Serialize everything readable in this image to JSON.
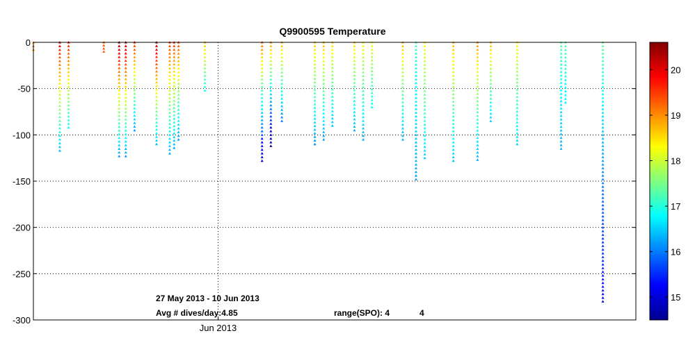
{
  "chart_data": {
    "type": "scatter",
    "title": "Q9900595 Temperature",
    "xlabel": "",
    "ylabel": "",
    "ylim": [
      -300,
      0
    ],
    "xlim_days": [
      -4.2,
      9.5
    ],
    "x_reference": "2013-06-01",
    "yticks": [
      0,
      -50,
      -100,
      -150,
      -200,
      -250,
      -300
    ],
    "xtick_label": "Jun 2013",
    "xtick_day": 0,
    "grid": true,
    "colorbar": {
      "min": 14.5,
      "max": 20.6,
      "ticks": [
        15,
        16,
        17,
        18,
        19,
        20
      ],
      "colormap": "jet"
    },
    "annotations": {
      "date_range": "27 May 2013 - 10 Jun 2013",
      "avg_dives": "Avg # dives/day:4.85",
      "range_spo": "range(SPO): 4",
      "range_spo_value": "4"
    },
    "profiles": [
      {
        "day": -4.2,
        "max_depth": -8,
        "surface_temp": 19.0,
        "temp_at_max": 19.0
      },
      {
        "day": -3.6,
        "max_depth": -117,
        "surface_temp": 20.0,
        "temp_at_max": 16.4
      },
      {
        "day": -3.4,
        "max_depth": -92,
        "surface_temp": 19.8,
        "temp_at_max": 16.8
      },
      {
        "day": -2.6,
        "max_depth": -10,
        "surface_temp": 19.3,
        "temp_at_max": 19.3
      },
      {
        "day": -2.25,
        "max_depth": -123,
        "surface_temp": 20.5,
        "temp_at_max": 16.2
      },
      {
        "day": -2.1,
        "max_depth": -123,
        "surface_temp": 20.4,
        "temp_at_max": 16.2
      },
      {
        "day": -1.9,
        "max_depth": -95,
        "surface_temp": 19.7,
        "temp_at_max": 16.2
      },
      {
        "day": -1.4,
        "max_depth": -110,
        "surface_temp": 20.4,
        "temp_at_max": 16.4
      },
      {
        "day": -1.1,
        "max_depth": -120,
        "surface_temp": 19.6,
        "temp_at_max": 16.3
      },
      {
        "day": -1.0,
        "max_depth": -114,
        "surface_temp": 19.6,
        "temp_at_max": 16.3
      },
      {
        "day": -0.9,
        "max_depth": -105,
        "surface_temp": 19.5,
        "temp_at_max": 16.2
      },
      {
        "day": -0.3,
        "max_depth": -52,
        "surface_temp": 18.8,
        "temp_at_max": 16.8
      },
      {
        "day": 1.0,
        "max_depth": -128,
        "surface_temp": 19.3,
        "temp_at_max": 14.9
      },
      {
        "day": 1.2,
        "max_depth": -112,
        "surface_temp": 19.0,
        "temp_at_max": 14.6
      },
      {
        "day": 1.45,
        "max_depth": -85,
        "surface_temp": 18.8,
        "temp_at_max": 16.0
      },
      {
        "day": 2.2,
        "max_depth": -110,
        "surface_temp": 18.7,
        "temp_at_max": 16.1
      },
      {
        "day": 2.4,
        "max_depth": -105,
        "surface_temp": 18.8,
        "temp_at_max": 16.2
      },
      {
        "day": 2.6,
        "max_depth": -90,
        "surface_temp": 18.6,
        "temp_at_max": 16.4
      },
      {
        "day": 3.1,
        "max_depth": -95,
        "surface_temp": 18.6,
        "temp_at_max": 16.3
      },
      {
        "day": 3.3,
        "max_depth": -105,
        "surface_temp": 18.4,
        "temp_at_max": 16.3
      },
      {
        "day": 3.5,
        "max_depth": -70,
        "surface_temp": 18.3,
        "temp_at_max": 16.8
      },
      {
        "day": 4.2,
        "max_depth": -105,
        "surface_temp": 18.8,
        "temp_at_max": 16.3
      },
      {
        "day": 4.5,
        "max_depth": -148,
        "surface_temp": 17.2,
        "temp_at_max": 16.2
      },
      {
        "day": 4.7,
        "max_depth": -125,
        "surface_temp": 18.4,
        "temp_at_max": 16.5
      },
      {
        "day": 5.35,
        "max_depth": -128,
        "surface_temp": 18.8,
        "temp_at_max": 16.4
      },
      {
        "day": 5.9,
        "max_depth": -127,
        "surface_temp": 19.0,
        "temp_at_max": 16.3
      },
      {
        "day": 6.2,
        "max_depth": -85,
        "surface_temp": 18.8,
        "temp_at_max": 16.5
      },
      {
        "day": 6.8,
        "max_depth": -110,
        "surface_temp": 18.4,
        "temp_at_max": 16.5
      },
      {
        "day": 7.8,
        "max_depth": -115,
        "surface_temp": 17.3,
        "temp_at_max": 16.3
      },
      {
        "day": 7.9,
        "max_depth": -65,
        "surface_temp": 17.3,
        "temp_at_max": 16.7
      },
      {
        "day": 8.75,
        "max_depth": -280,
        "surface_temp": 17.4,
        "temp_at_max": 15.1
      }
    ]
  }
}
